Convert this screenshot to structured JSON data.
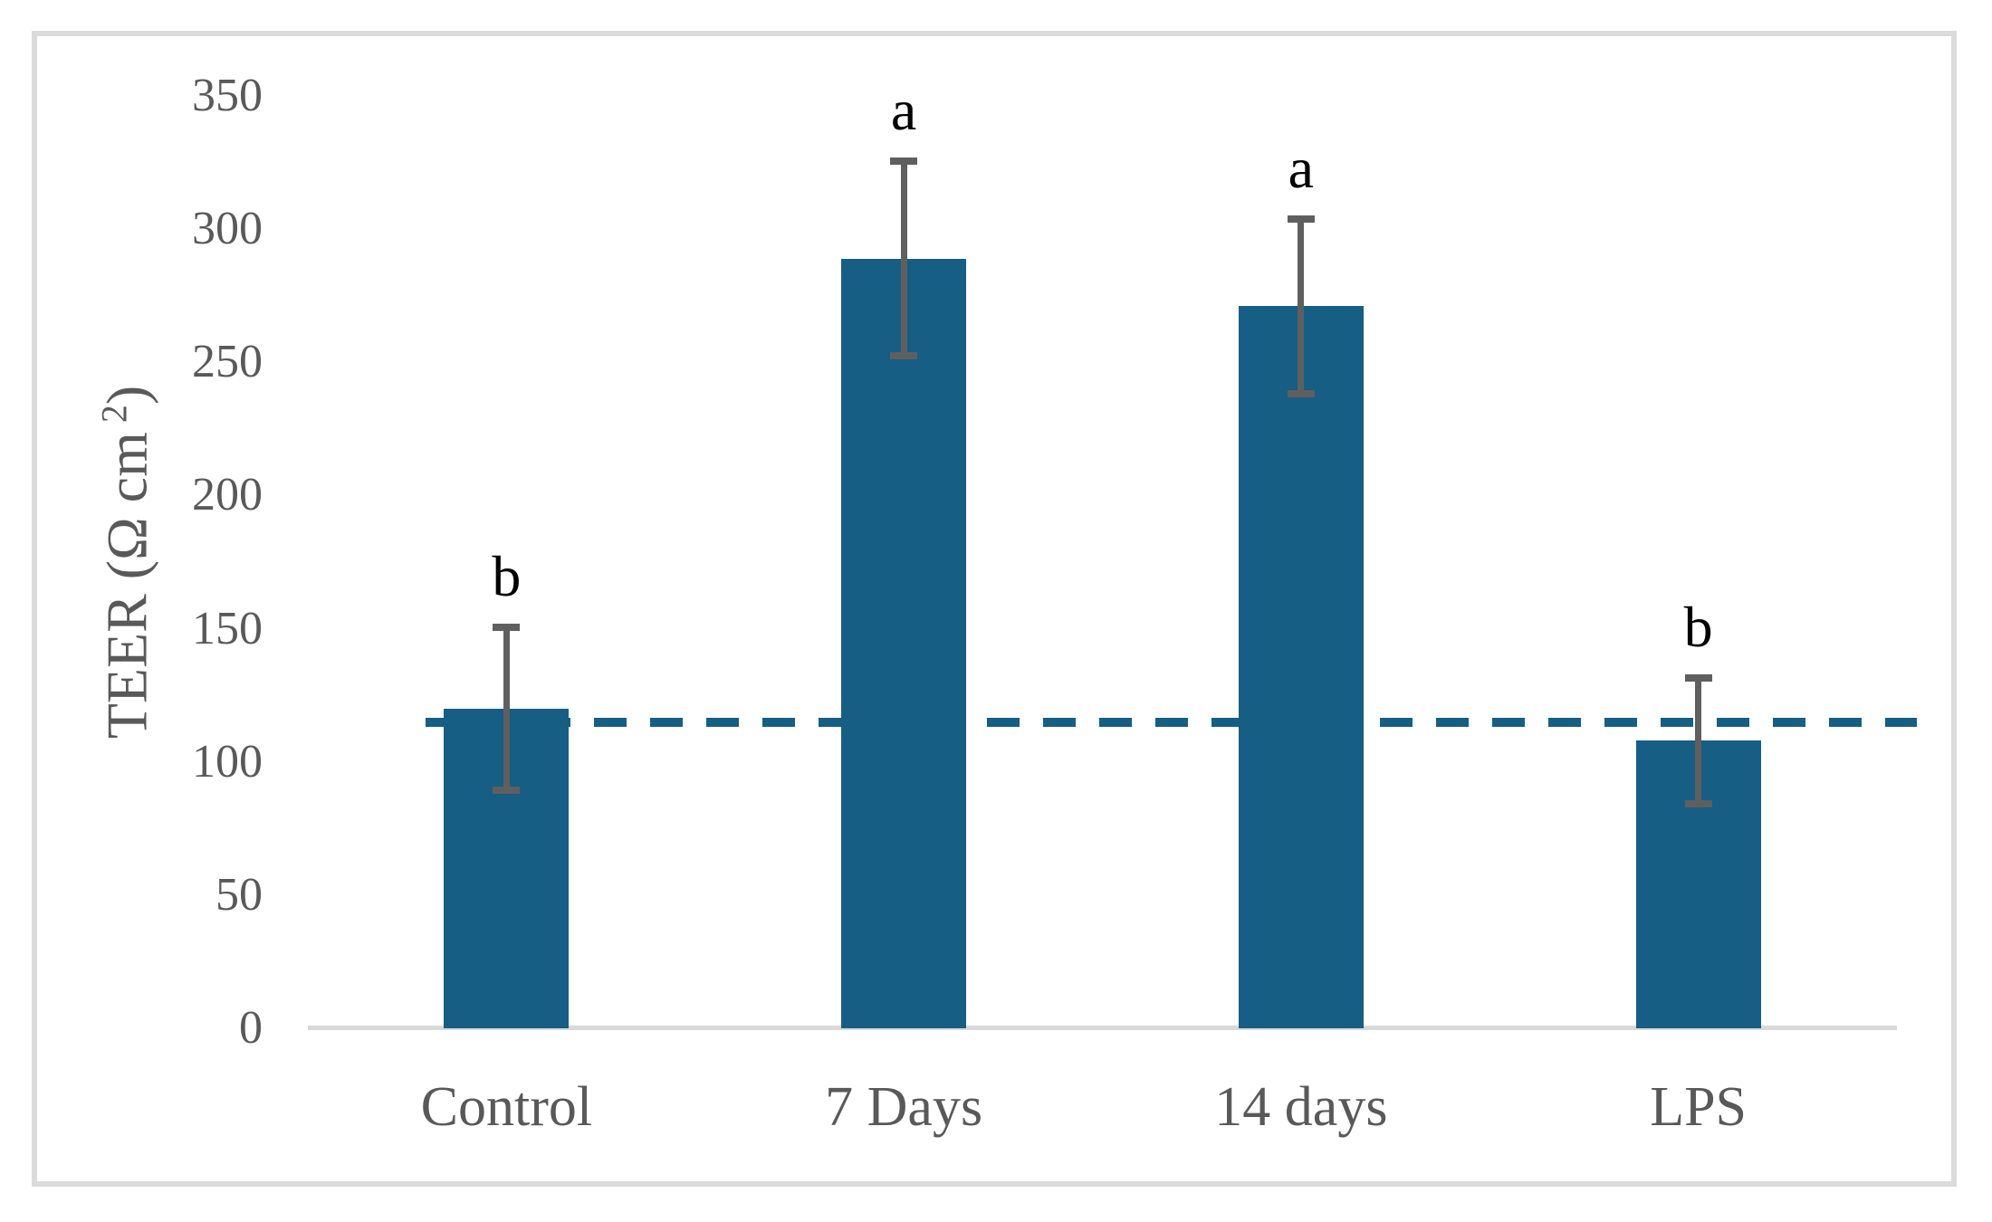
{
  "figure": {
    "background_color": "#FFFFFF",
    "frame_color": "#DBDBDB"
  },
  "chart_data": {
    "type": "bar",
    "title": "",
    "xlabel": "",
    "ylabel": "TEER (Ω cm 2)",
    "ylabel_parts": {
      "main": "TEER (Ω cm",
      "sup": "2",
      "close": ")"
    },
    "categories": [
      "Control",
      "7 Days",
      "14 days",
      "LPS"
    ],
    "values": [
      120,
      289,
      271,
      108
    ],
    "error_bars": [
      32,
      38,
      34,
      25
    ],
    "sig_letters": [
      "b",
      "a",
      "a",
      "b"
    ],
    "ylim": [
      0,
      350
    ],
    "yticks": [
      0,
      50,
      100,
      150,
      200,
      250,
      300,
      350
    ],
    "reference_line": {
      "value": 115,
      "style": "dashed",
      "color": "#165E83"
    },
    "grid": "off",
    "legend": "none",
    "colors": {
      "bar": "#165E83",
      "error_bar": "#5F5F5F",
      "tick_text": "#595959",
      "category_text": "#595959",
      "sig_letter_text": "#000000",
      "axis_line": "#D9D9D9"
    }
  }
}
